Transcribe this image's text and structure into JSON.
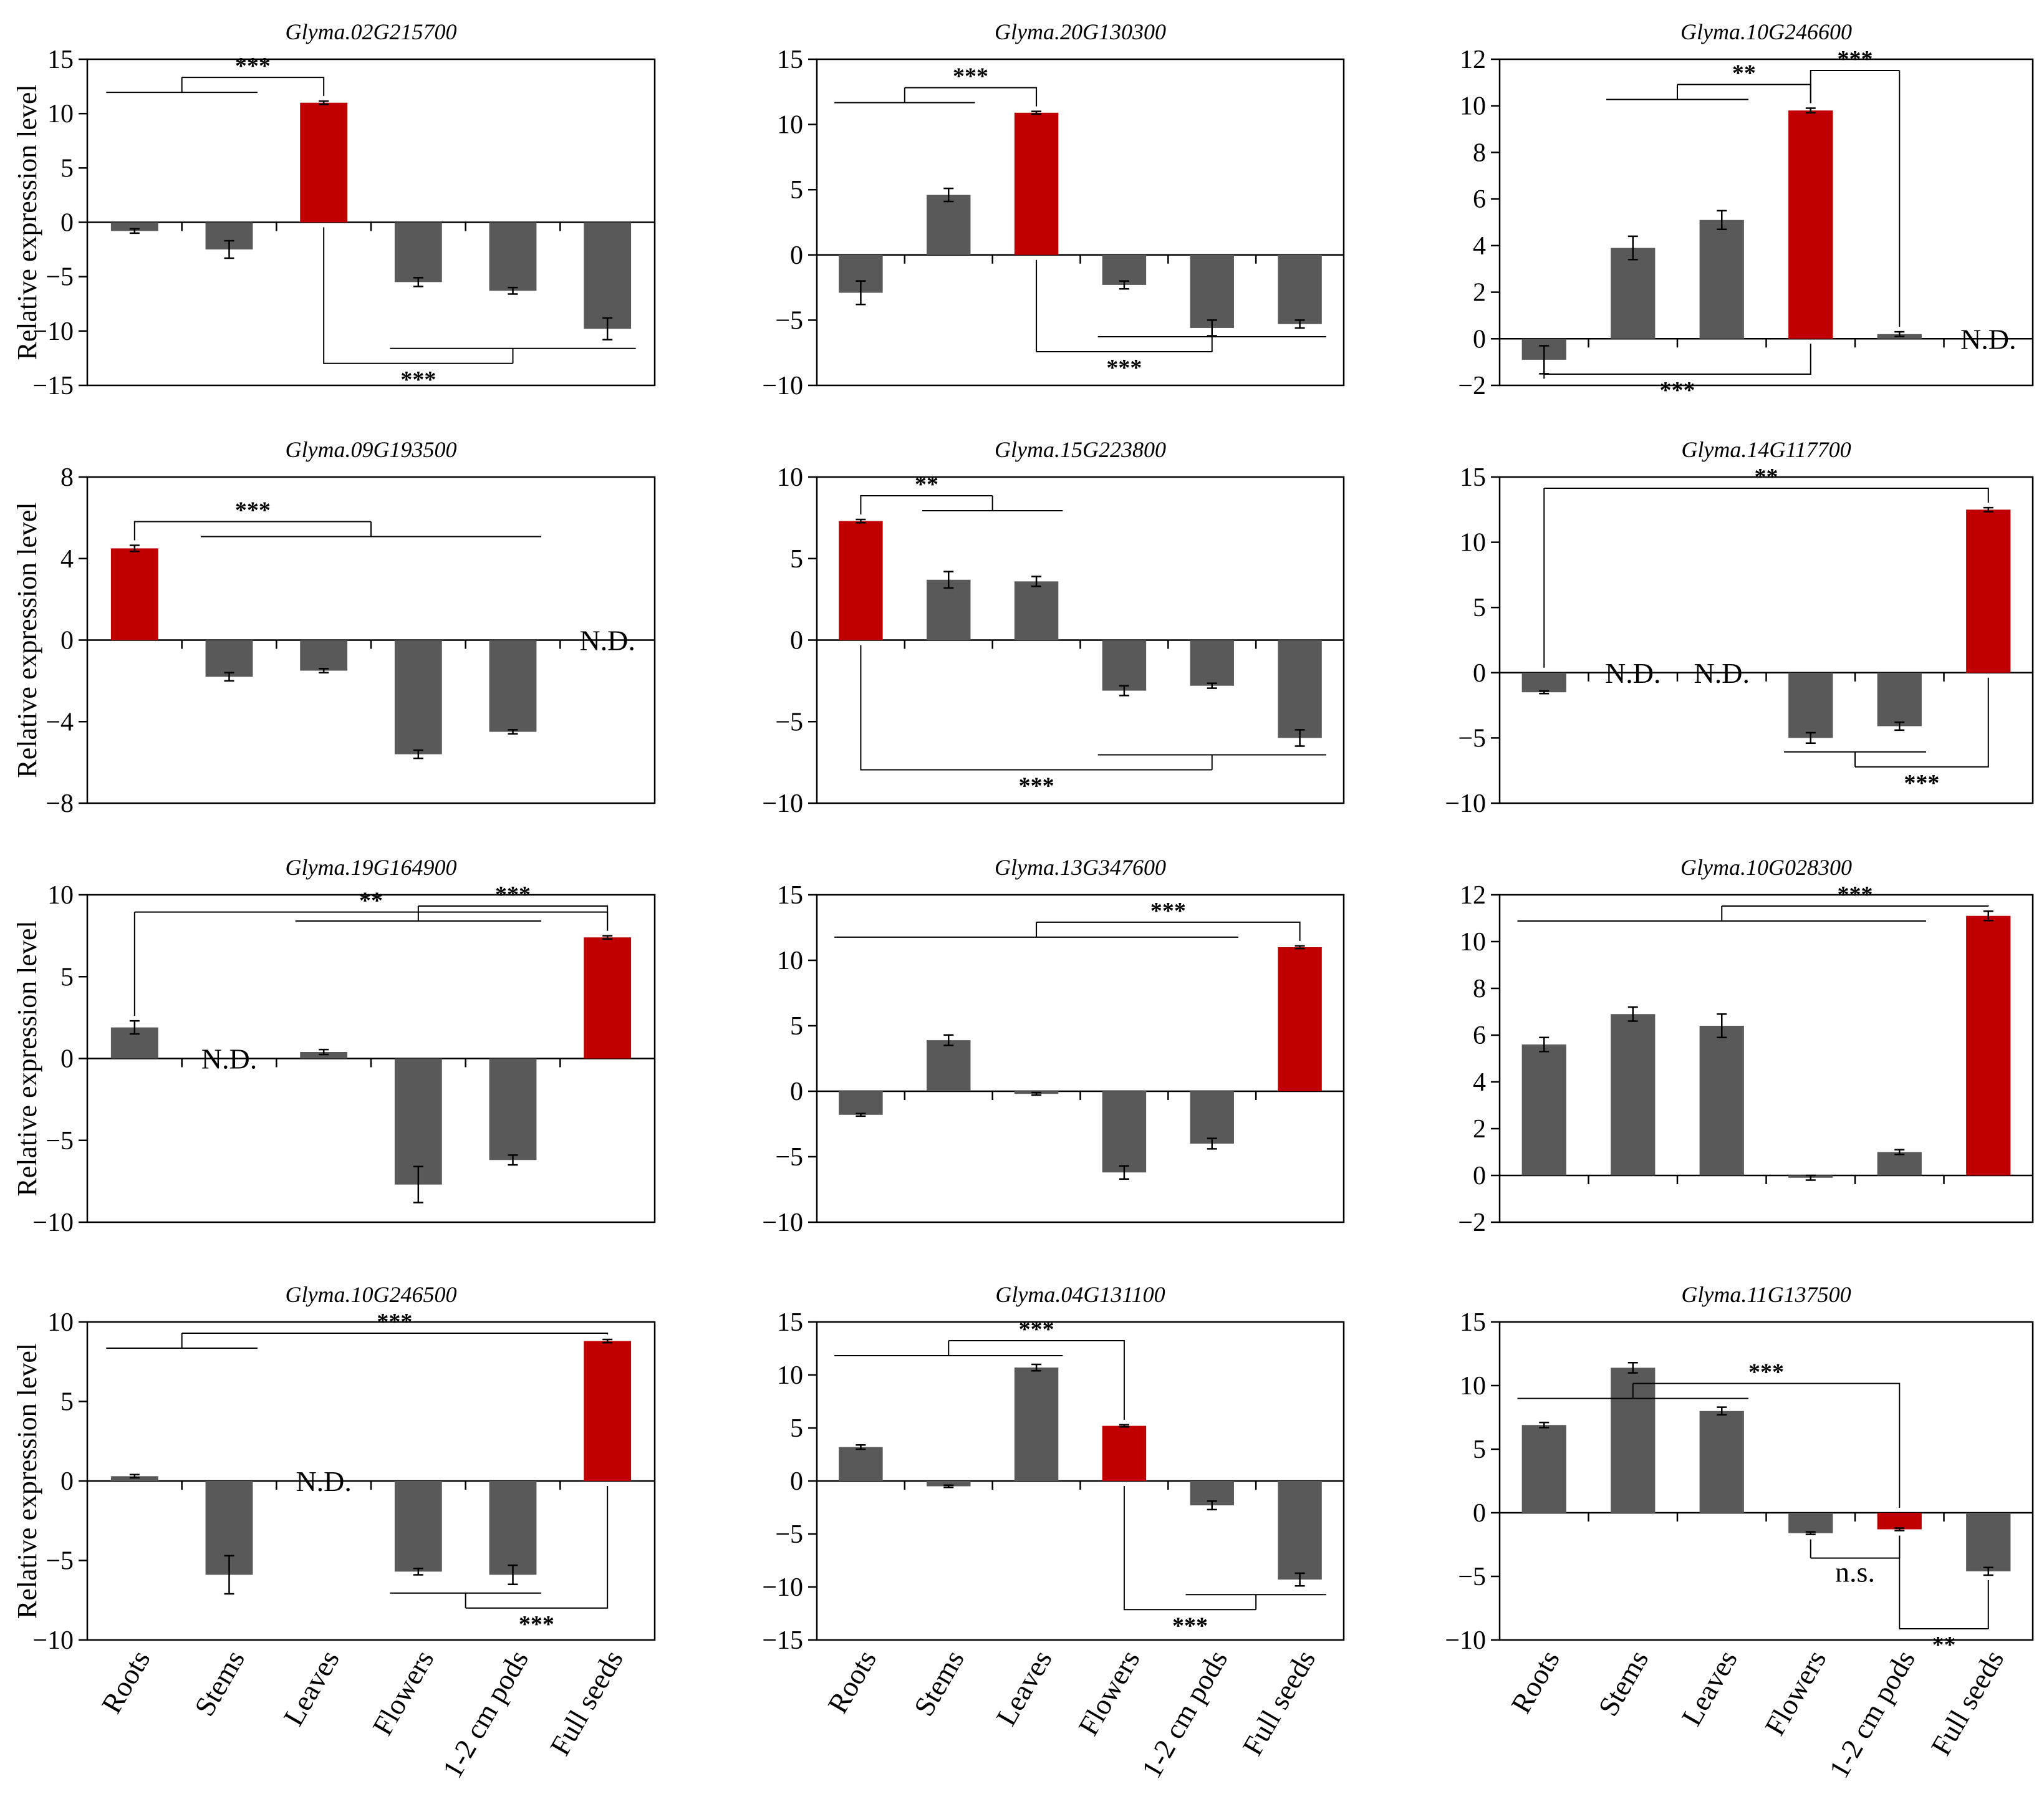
{
  "figure": {
    "ylabel": "Relative expression level",
    "categories": [
      "Roots",
      "Stems",
      "Leaves",
      "Flowers",
      "1-2 cm pods",
      "Full seeds"
    ],
    "colors": {
      "highlight": "#c00000",
      "default": "#595959"
    }
  },
  "chart_data": [
    {
      "type": "bar",
      "title": "Glyma.02G215700",
      "ylim": [
        -15,
        15
      ],
      "yticks": [
        15,
        10,
        5,
        0,
        -5,
        -10,
        -15
      ],
      "values": [
        -0.8,
        -2.5,
        11.0,
        -5.5,
        -6.3,
        -9.8
      ],
      "errors": [
        0.2,
        0.8,
        0.15,
        0.4,
        0.3,
        1.0
      ],
      "highlight": [
        2
      ],
      "nd": [],
      "annotations": [
        {
          "from": [
            0,
            1
          ],
          "to": 2,
          "side": "above",
          "label": "***"
        },
        {
          "from": [
            3,
            5
          ],
          "to": 2,
          "side": "below",
          "label": "***"
        }
      ]
    },
    {
      "type": "bar",
      "title": "Glyma.20G130300",
      "ylim": [
        -10,
        15
      ],
      "yticks": [
        15,
        10,
        5,
        0,
        -5,
        -10
      ],
      "values": [
        -2.9,
        4.6,
        10.9,
        -2.3,
        -5.6,
        -5.3
      ],
      "errors": [
        0.9,
        0.5,
        0.1,
        0.3,
        0.6,
        0.3
      ],
      "highlight": [
        2
      ],
      "nd": [],
      "annotations": [
        {
          "from": [
            0,
            1
          ],
          "to": 2,
          "side": "above",
          "label": "***"
        },
        {
          "from": [
            3,
            5
          ],
          "to": 2,
          "side": "below",
          "label": "***"
        }
      ]
    },
    {
      "type": "bar",
      "title": "Glyma.10G246600",
      "ylim": [
        -2,
        12
      ],
      "yticks": [
        12,
        10,
        8,
        6,
        4,
        2,
        0,
        -2
      ],
      "values": [
        -0.9,
        3.9,
        5.1,
        9.8,
        0.2,
        0
      ],
      "errors": [
        0.6,
        0.5,
        0.4,
        0.1,
        0.1,
        0
      ],
      "highlight": [
        3
      ],
      "nd": [
        5
      ],
      "annotations": [
        {
          "from": [
            1,
            2
          ],
          "to": 3,
          "side": "above",
          "label": "**"
        },
        {
          "from": [
            4
          ],
          "to": 3,
          "side": "above",
          "label": "***"
        },
        {
          "from": [
            0
          ],
          "to": 3,
          "side": "below",
          "label": "***"
        }
      ]
    },
    {
      "type": "bar",
      "title": "Glyma.09G193500",
      "ylim": [
        -8,
        8
      ],
      "yticks": [
        8,
        4,
        0,
        -4,
        -8
      ],
      "values": [
        4.5,
        -1.8,
        -1.5,
        -5.6,
        -4.5
      ],
      "errors": [
        0.15,
        0.2,
        0.1,
        0.2,
        0.1
      ],
      "highlight": [
        0
      ],
      "nd": [
        5
      ],
      "annotations": [
        {
          "from": [
            1,
            4
          ],
          "to": 0,
          "side": "above",
          "label": "***"
        }
      ]
    },
    {
      "type": "bar",
      "title": "Glyma.15G223800",
      "ylim": [
        -10,
        10
      ],
      "yticks": [
        10,
        5,
        0,
        -5,
        -10
      ],
      "values": [
        7.3,
        3.7,
        3.6,
        -3.1,
        -2.8,
        -6.0
      ],
      "errors": [
        0.1,
        0.5,
        0.3,
        0.3,
        0.15,
        0.5
      ],
      "highlight": [
        0
      ],
      "nd": [],
      "annotations": [
        {
          "from": [
            1,
            2
          ],
          "to": 0,
          "side": "above",
          "label": "**"
        },
        {
          "from": [
            3,
            5
          ],
          "to": 0,
          "side": "below",
          "label": "***"
        }
      ]
    },
    {
      "type": "bar",
      "title": "Glyma.14G117700",
      "ylim": [
        -10,
        15
      ],
      "yticks": [
        15,
        10,
        5,
        0,
        -5,
        -10
      ],
      "values": [
        -1.5,
        0,
        0,
        -5.0,
        -4.1,
        12.5
      ],
      "errors": [
        0.1,
        0,
        0,
        0.4,
        0.3,
        0.15
      ],
      "highlight": [
        5
      ],
      "nd": [
        1,
        2
      ],
      "annotations": [
        {
          "from": [
            0
          ],
          "to": 5,
          "side": "above",
          "label": "**"
        },
        {
          "from": [
            3,
            4
          ],
          "to": 5,
          "side": "below",
          "label": "***"
        }
      ]
    },
    {
      "type": "bar",
      "title": "Glyma.19G164900",
      "ylim": [
        -10,
        10
      ],
      "yticks": [
        10,
        5,
        0,
        -5,
        -10
      ],
      "values": [
        1.9,
        0,
        0.4,
        -7.7,
        -6.2,
        7.4
      ],
      "errors": [
        0.4,
        0,
        0.15,
        1.1,
        0.3,
        0.1
      ],
      "highlight": [
        5
      ],
      "nd": [
        1
      ],
      "annotations": [
        {
          "from": [
            0
          ],
          "to": 5,
          "side": "above",
          "label": "**"
        },
        {
          "from": [
            2,
            4
          ],
          "to": 5,
          "side": "above",
          "label": "***"
        }
      ]
    },
    {
      "type": "bar",
      "title": "Glyma.13G347600",
      "ylim": [
        -10,
        15
      ],
      "yticks": [
        15,
        10,
        5,
        0,
        -5,
        -10
      ],
      "values": [
        -1.8,
        3.9,
        -0.2,
        -6.2,
        -4.0,
        11.0
      ],
      "errors": [
        0.1,
        0.4,
        0.1,
        0.5,
        0.4,
        0.1
      ],
      "highlight": [
        5
      ],
      "nd": [],
      "annotations": [
        {
          "from": [
            0,
            4
          ],
          "to": 5,
          "side": "above",
          "label": "***"
        }
      ]
    },
    {
      "type": "bar",
      "title": "Glyma.10G028300",
      "ylim": [
        -2,
        12
      ],
      "yticks": [
        12,
        10,
        8,
        6,
        4,
        2,
        0,
        -2
      ],
      "values": [
        5.6,
        6.9,
        6.4,
        -0.1,
        1.0,
        11.1
      ],
      "errors": [
        0.3,
        0.3,
        0.5,
        0.1,
        0.1,
        0.2
      ],
      "highlight": [
        5
      ],
      "nd": [],
      "annotations": [
        {
          "from": [
            0,
            4
          ],
          "to": 5,
          "side": "above",
          "label": "***"
        }
      ]
    },
    {
      "type": "bar",
      "title": "Glyma.10G246500",
      "ylim": [
        -10,
        10
      ],
      "yticks": [
        10,
        5,
        0,
        -5,
        -10
      ],
      "values": [
        0.3,
        -5.9,
        0,
        -5.7,
        -5.9,
        8.8
      ],
      "errors": [
        0.1,
        1.2,
        0,
        0.2,
        0.6,
        0.1
      ],
      "highlight": [
        5
      ],
      "nd": [
        2
      ],
      "annotations": [
        {
          "from": [
            0,
            1
          ],
          "to": 5,
          "side": "above",
          "label": "***"
        },
        {
          "from": [
            3,
            4
          ],
          "to": 5,
          "side": "below",
          "label": "***"
        }
      ]
    },
    {
      "type": "bar",
      "title": "Glyma.04G131100",
      "ylim": [
        -15,
        15
      ],
      "yticks": [
        15,
        10,
        5,
        0,
        -5,
        -10,
        -15
      ],
      "values": [
        3.2,
        -0.5,
        10.7,
        5.2,
        -2.3,
        -9.3
      ],
      "errors": [
        0.2,
        0.1,
        0.3,
        0.1,
        0.4,
        0.6
      ],
      "highlight": [
        3
      ],
      "nd": [],
      "annotations": [
        {
          "from": [
            0,
            2
          ],
          "to": 3,
          "side": "above",
          "label": "***"
        },
        {
          "from": [
            4,
            5
          ],
          "to": 3,
          "side": "below",
          "label": "***"
        }
      ]
    },
    {
      "type": "bar",
      "title": "Glyma.11G137500",
      "ylim": [
        -10,
        15
      ],
      "yticks": [
        15,
        10,
        5,
        0,
        -5,
        -10
      ],
      "values": [
        6.9,
        11.4,
        8.0,
        -1.6,
        -1.3,
        -4.6
      ],
      "errors": [
        0.2,
        0.4,
        0.3,
        0.1,
        0.1,
        0.3
      ],
      "highlight": [
        4
      ],
      "nd": [],
      "annotations": [
        {
          "from": [
            0,
            2
          ],
          "to": 4,
          "side": "above",
          "label": "***"
        },
        {
          "from": [
            3
          ],
          "to": 4,
          "side": "below",
          "label": "n.s."
        },
        {
          "from": [
            5
          ],
          "to": 4,
          "side": "below",
          "label": "**"
        }
      ]
    }
  ]
}
